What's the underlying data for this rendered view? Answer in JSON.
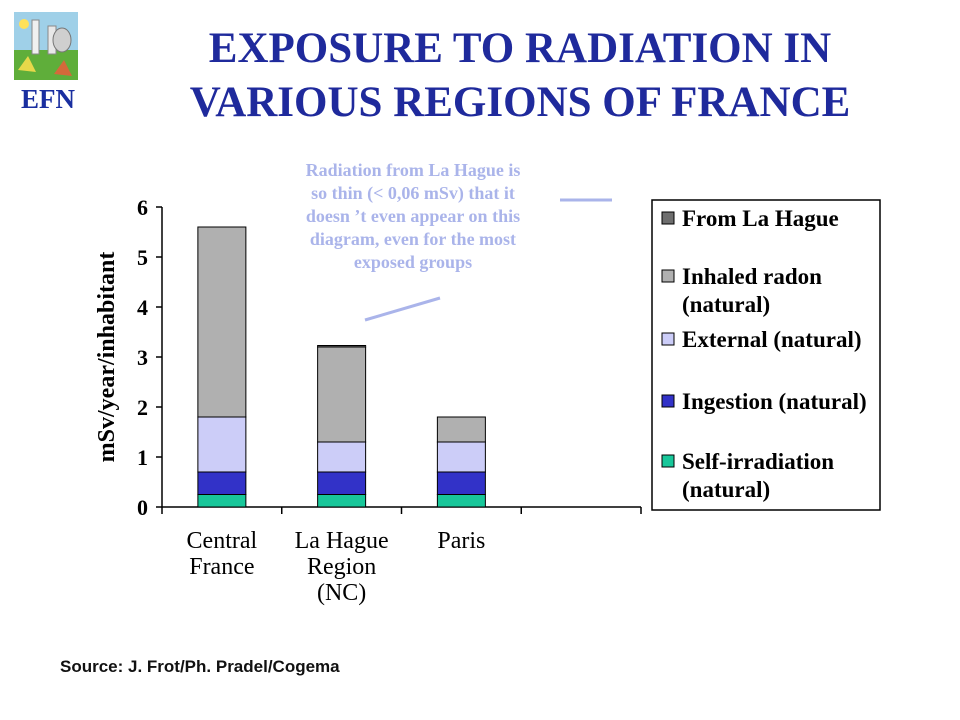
{
  "header": {
    "title_line1": "EXPOSURE TO RADIATION IN",
    "title_line2": "VARIOUS REGIONS OF FRANCE",
    "logo_text": "EFN"
  },
  "annotation": {
    "lines": [
      "Radiation from La Hague is",
      "so thin (< 0,06 mSv) that it",
      "doesn ’t even appear on this",
      "diagram, even for the most",
      "exposed groups"
    ]
  },
  "footer": {
    "source": "Source: J. Frot/Ph. Pradel/Cogema"
  },
  "colors": {
    "title": "#1f2a9c",
    "annotation": "#aab4ea",
    "from_la_hague": "#6e6e6e",
    "inhaled_radon": "#b0b0b0",
    "external": "#cccdf8",
    "ingestion": "#3232c8",
    "self_irradiation": "#18c79a"
  },
  "chart_data": {
    "type": "bar",
    "stacked": true,
    "ylabel": "mSv/year/inhabitant",
    "ylim": [
      0,
      6
    ],
    "yticks": [
      "0",
      "1",
      "2",
      "3",
      "4",
      "5",
      "6"
    ],
    "categories": [
      [
        "Central",
        "France"
      ],
      [
        "La Hague",
        "Region",
        "(NC)"
      ],
      [
        "Paris"
      ]
    ],
    "series": [
      {
        "name": "Self-irradiation (natural)",
        "legend_lines": [
          "Self-irradiation",
          "(natural)"
        ],
        "color_key": "self_irradiation",
        "values": [
          0.25,
          0.25,
          0.25
        ]
      },
      {
        "name": "Ingestion (natural)",
        "legend_lines": [
          "Ingestion (natural)"
        ],
        "color_key": "ingestion",
        "values": [
          0.45,
          0.45,
          0.45
        ]
      },
      {
        "name": "External (natural)",
        "legend_lines": [
          "External (natural)"
        ],
        "color_key": "external",
        "values": [
          1.1,
          0.6,
          0.6
        ]
      },
      {
        "name": "Inhaled radon (natural)",
        "legend_lines": [
          "Inhaled radon",
          "(natural)"
        ],
        "color_key": "inhaled_radon",
        "values": [
          3.8,
          1.9,
          0.5
        ]
      },
      {
        "name": "From La Hague",
        "legend_lines": [
          "From La Hague"
        ],
        "color_key": "from_la_hague",
        "values": [
          0,
          0.03,
          0
        ]
      }
    ],
    "grid": false,
    "legend_position": "right"
  }
}
